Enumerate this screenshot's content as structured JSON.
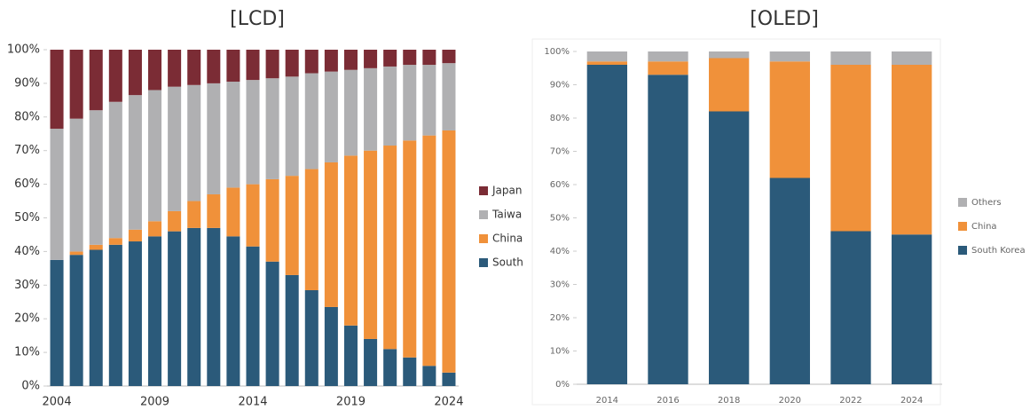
{
  "chart_data": [
    {
      "type": "stacked_bar",
      "title": "[LCD]",
      "categories": [
        "2004",
        null,
        null,
        null,
        null,
        "2009",
        null,
        null,
        null,
        null,
        "2014",
        null,
        null,
        null,
        null,
        "2019",
        null,
        null,
        null,
        null,
        "2024"
      ],
      "series": [
        {
          "name": "South",
          "color": "#2b5a7a",
          "values": [
            37.5,
            39,
            40.5,
            42,
            43,
            44.5,
            46,
            47,
            47,
            44.5,
            41.5,
            37,
            33,
            28.5,
            23.5,
            18,
            14,
            11,
            8.5,
            6,
            4
          ]
        },
        {
          "name": "China",
          "color": "#f0913a",
          "values": [
            0,
            1,
            1.5,
            2,
            3.5,
            4.5,
            6,
            8,
            10,
            14.5,
            18.5,
            24.5,
            29.5,
            36,
            43,
            50.5,
            56,
            60.5,
            64.5,
            68.5,
            72
          ]
        },
        {
          "name": "Taiwa",
          "color": "#b0b0b2",
          "values": [
            39,
            39.5,
            40,
            40.5,
            40,
            39,
            37,
            34.5,
            33,
            31.5,
            31,
            30,
            29.5,
            28.5,
            27,
            25.5,
            24.5,
            23.5,
            22.5,
            21,
            20
          ]
        },
        {
          "name": "Japan",
          "color": "#7b2c35",
          "values": [
            23.5,
            20.5,
            18,
            15.5,
            13.5,
            12,
            11,
            10.5,
            10,
            9.5,
            9,
            8.5,
            8,
            7,
            6.5,
            6,
            5.5,
            5,
            4.5,
            4.5,
            4
          ]
        }
      ],
      "ylim": [
        0,
        100
      ],
      "yticks": [
        {
          "value": 0,
          "label": "0%"
        },
        {
          "value": 10,
          "label": "10%"
        },
        {
          "value": 20,
          "label": "20%"
        },
        {
          "value": 30,
          "label": "30%"
        },
        {
          "value": 40,
          "label": "40%"
        },
        {
          "value": 50,
          "label": "50%"
        },
        {
          "value": 60,
          "label": "60%"
        },
        {
          "value": 70,
          "label": "70%"
        },
        {
          "value": 80,
          "label": "80%"
        },
        {
          "value": 90,
          "label": "90%"
        },
        {
          "value": 100,
          "label": "100%"
        }
      ]
    },
    {
      "type": "stacked_bar",
      "title": "[OLED]",
      "categories": [
        "2014",
        "2016",
        "2018",
        "2020",
        "2022",
        "2024"
      ],
      "series": [
        {
          "name": "South Korea",
          "color": "#2b5a7a",
          "values": [
            96,
            93,
            82,
            62,
            46,
            45
          ]
        },
        {
          "name": "China",
          "color": "#f0913a",
          "values": [
            1,
            4,
            16,
            35,
            50,
            51
          ]
        },
        {
          "name": "Others",
          "color": "#b0b0b2",
          "values": [
            3,
            3,
            2,
            3,
            4,
            4
          ]
        }
      ],
      "ylim": [
        0,
        100
      ],
      "yticks": [
        {
          "value": 0,
          "label": "0%"
        },
        {
          "value": 10,
          "label": "10%"
        },
        {
          "value": 20,
          "label": "20%"
        },
        {
          "value": 30,
          "label": "30%"
        },
        {
          "value": 40,
          "label": "40%"
        },
        {
          "value": 50,
          "label": "50%"
        },
        {
          "value": 60,
          "label": "60%"
        },
        {
          "value": 70,
          "label": "70%"
        },
        {
          "value": 80,
          "label": "80%"
        },
        {
          "value": 90,
          "label": "90%"
        },
        {
          "value": 100,
          "label": "100%"
        }
      ]
    }
  ]
}
